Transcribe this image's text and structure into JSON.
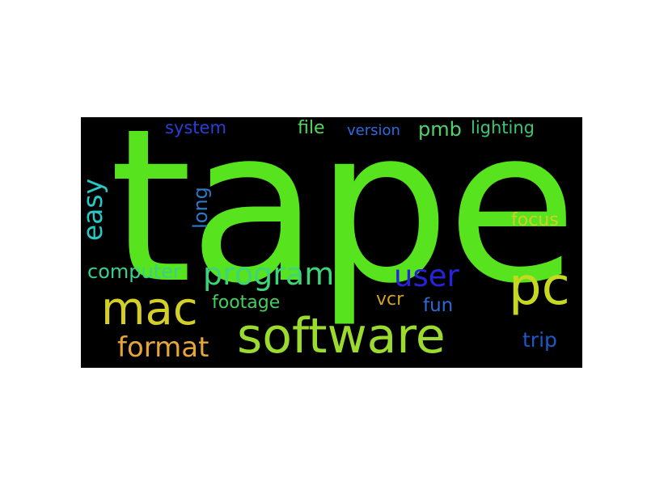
{
  "word_cloud": {
    "background": "#000000",
    "words": [
      {
        "text": "tape",
        "color": "#57e31d"
      },
      {
        "text": "software",
        "color": "#9bdb2e"
      },
      {
        "text": "pc",
        "color": "#c7d91e"
      },
      {
        "text": "mac",
        "color": "#d3cf27"
      },
      {
        "text": "program",
        "color": "#3ed579"
      },
      {
        "text": "user",
        "color": "#2623d8"
      },
      {
        "text": "format",
        "color": "#e6a53b"
      },
      {
        "text": "easy",
        "color": "#27c8c6"
      },
      {
        "text": "computer",
        "color": "#38d08a"
      },
      {
        "text": "long",
        "color": "#2e79c4"
      },
      {
        "text": "focus",
        "color": "#d1cd2f"
      },
      {
        "text": "footage",
        "color": "#43cf5e"
      },
      {
        "text": "vcr",
        "color": "#d3a21e"
      },
      {
        "text": "fun",
        "color": "#2d6ad4"
      },
      {
        "text": "trip",
        "color": "#1d58c9"
      },
      {
        "text": "system",
        "color": "#2a3fd6"
      },
      {
        "text": "file",
        "color": "#54d65a"
      },
      {
        "text": "version",
        "color": "#2b6be0"
      },
      {
        "text": "pmb",
        "color": "#4fd26f"
      },
      {
        "text": "lighting",
        "color": "#3ec474"
      }
    ]
  }
}
